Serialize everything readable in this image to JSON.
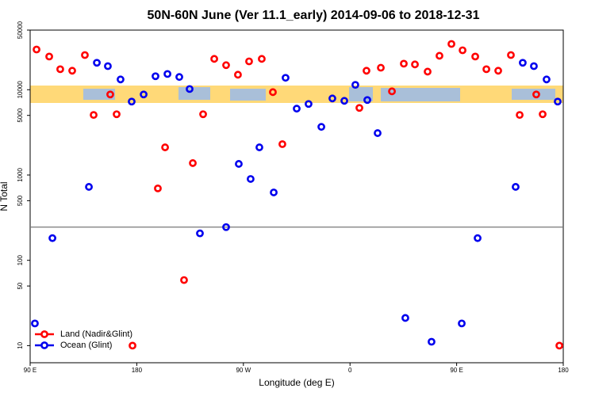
{
  "chart_data": {
    "type": "scatter",
    "title": "50N-60N June (Ver 11.1_early)   2014-09-06 to 2018-12-31",
    "xlabel": "Longitude (deg E)",
    "ylabel": "N Total",
    "xlim": [
      90,
      540
    ],
    "xticks": [
      {
        "value": 90,
        "label": "90 E"
      },
      {
        "value": 180,
        "label": "180"
      },
      {
        "value": 270,
        "label": "90 W"
      },
      {
        "value": 360,
        "label": "0"
      },
      {
        "value": 450,
        "label": "90 E"
      },
      {
        "value": 540,
        "label": "180"
      }
    ],
    "ylim": [
      6.3,
      50000
    ],
    "log_y": true,
    "yticks": [
      10,
      50,
      100,
      500,
      1000,
      5000,
      10000,
      50000
    ],
    "hline": 245,
    "hline_color": "#777777",
    "grid": false,
    "legend": "bottom-left",
    "series": [
      {
        "name": "Land (Nadir&Glint)",
        "color": "#ff0000",
        "x": [
          95.4,
          106.1,
          115.4,
          125.5,
          136.2,
          143.6,
          157.6,
          163.0,
          176.4,
          197.8,
          203.9,
          219.9,
          227.3,
          236.0,
          245.4,
          255.4,
          265.4,
          274.8,
          285.5,
          294.9,
          302.9,
          367.9,
          373.9,
          386.0,
          395.4,
          405.4,
          414.8,
          425.5,
          435.5,
          445.6,
          455.0,
          465.7,
          475.1,
          485.1,
          495.8,
          503.2,
          517.2,
          522.6,
          536.7
        ],
        "values": [
          29600,
          24500,
          17400,
          16700,
          25500,
          5060,
          8800,
          5160,
          10,
          697,
          2110,
          58.7,
          1380,
          5160,
          23000,
          19400,
          15000,
          21500,
          23000,
          9370,
          2300,
          6120,
          16700,
          18100,
          9570,
          20200,
          19800,
          16300,
          25000,
          34400,
          29000,
          24500,
          17400,
          16700,
          25500,
          5060,
          8800,
          5160,
          10
        ]
      },
      {
        "name": "Ocean (Glint)",
        "color": "#0000ee",
        "x": [
          94.0,
          108.8,
          139.6,
          146.3,
          155.6,
          166.3,
          175.7,
          185.8,
          195.8,
          205.9,
          215.9,
          224.6,
          233.3,
          255.4,
          266.1,
          276.1,
          283.5,
          295.6,
          305.6,
          315.0,
          325.0,
          335.8,
          345.1,
          355.2,
          364.5,
          374.6,
          383.3,
          406.7,
          428.8,
          454.3,
          467.7,
          499.8,
          505.8,
          515.2,
          525.9,
          535.3
        ],
        "values": [
          18.2,
          182,
          726,
          20700,
          18900,
          13200,
          7260,
          8800,
          14400,
          15300,
          14100,
          10200,
          207,
          245,
          1350,
          899,
          2110,
          625,
          13800,
          6000,
          6810,
          3670,
          7900,
          7410,
          11400,
          7580,
          3100,
          21.1,
          11.1,
          18.2,
          182,
          726,
          20700,
          18900,
          13200,
          7260
        ]
      }
    ]
  }
}
